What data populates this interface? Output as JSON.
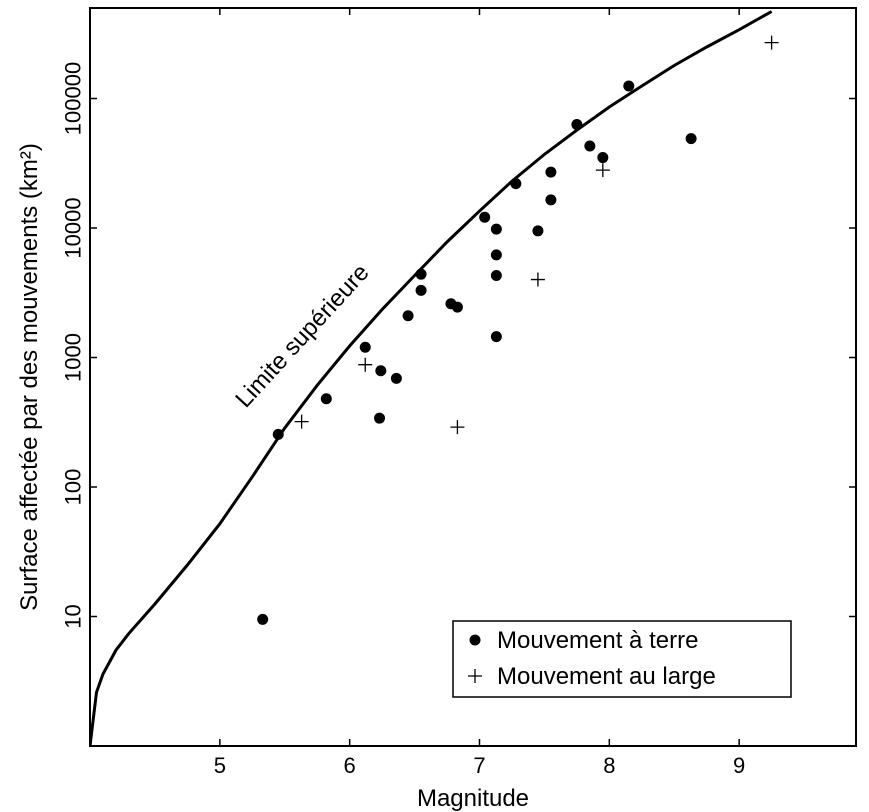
{
  "chart_data": {
    "type": "scatter",
    "title": "",
    "xlabel": "Magnitude",
    "ylabel": "Surface affectée par des mouvements (km²)",
    "xlim": [
      4,
      9.9
    ],
    "ylim": [
      1,
      500000
    ],
    "y_scale": "log",
    "grid": false,
    "x_ticks": [
      5,
      6,
      7,
      8,
      9
    ],
    "y_ticks": [
      10,
      100,
      1000,
      10000,
      100000
    ],
    "legend_position": "bottom-right",
    "legend": {
      "onshore": "Mouvement à terre",
      "offshore": "Mouvement au large"
    },
    "curve_label": "Limite supérieure",
    "series": [
      {
        "name": "Mouvement à terre",
        "marker": "dot",
        "points": [
          {
            "x": 5.33,
            "y": 9.5
          },
          {
            "x": 5.45,
            "y": 255
          },
          {
            "x": 5.82,
            "y": 480
          },
          {
            "x": 6.12,
            "y": 1200
          },
          {
            "x": 6.23,
            "y": 340
          },
          {
            "x": 6.24,
            "y": 790
          },
          {
            "x": 6.36,
            "y": 690
          },
          {
            "x": 6.45,
            "y": 2100
          },
          {
            "x": 6.55,
            "y": 4400
          },
          {
            "x": 6.55,
            "y": 3300
          },
          {
            "x": 6.78,
            "y": 2600
          },
          {
            "x": 6.83,
            "y": 2450
          },
          {
            "x": 7.04,
            "y": 12100
          },
          {
            "x": 7.13,
            "y": 9800
          },
          {
            "x": 7.13,
            "y": 6200
          },
          {
            "x": 7.13,
            "y": 4300
          },
          {
            "x": 7.13,
            "y": 1450
          },
          {
            "x": 7.28,
            "y": 22000
          },
          {
            "x": 7.45,
            "y": 9500
          },
          {
            "x": 7.55,
            "y": 27000
          },
          {
            "x": 7.55,
            "y": 16500
          },
          {
            "x": 7.75,
            "y": 63000
          },
          {
            "x": 7.85,
            "y": 43000
          },
          {
            "x": 7.95,
            "y": 35000
          },
          {
            "x": 8.15,
            "y": 125000
          },
          {
            "x": 8.63,
            "y": 49000
          }
        ]
      },
      {
        "name": "Mouvement au large",
        "marker": "plus",
        "points": [
          {
            "x": 5.63,
            "y": 320
          },
          {
            "x": 6.12,
            "y": 880
          },
          {
            "x": 6.83,
            "y": 290
          },
          {
            "x": 7.45,
            "y": 4000
          },
          {
            "x": 7.95,
            "y": 28000
          },
          {
            "x": 9.25,
            "y": 270000
          }
        ]
      },
      {
        "name": "Limite supérieure",
        "marker": "line",
        "points": [
          {
            "x": 4.0,
            "y": 1
          },
          {
            "x": 4.05,
            "y": 2.6
          },
          {
            "x": 4.1,
            "y": 3.6
          },
          {
            "x": 4.2,
            "y": 5.5
          },
          {
            "x": 4.3,
            "y": 7.4
          },
          {
            "x": 4.5,
            "y": 12.5
          },
          {
            "x": 4.75,
            "y": 25
          },
          {
            "x": 5.0,
            "y": 52
          },
          {
            "x": 5.25,
            "y": 120
          },
          {
            "x": 5.5,
            "y": 285
          },
          {
            "x": 5.75,
            "y": 610
          },
          {
            "x": 6.0,
            "y": 1230
          },
          {
            "x": 6.25,
            "y": 2350
          },
          {
            "x": 6.5,
            "y": 4300
          },
          {
            "x": 6.75,
            "y": 7800
          },
          {
            "x": 7.0,
            "y": 13500
          },
          {
            "x": 7.25,
            "y": 23000
          },
          {
            "x": 7.5,
            "y": 37000
          },
          {
            "x": 7.75,
            "y": 57000
          },
          {
            "x": 8.0,
            "y": 86000
          },
          {
            "x": 8.25,
            "y": 125000
          },
          {
            "x": 8.5,
            "y": 180000
          },
          {
            "x": 8.75,
            "y": 250000
          },
          {
            "x": 9.0,
            "y": 340000
          },
          {
            "x": 9.25,
            "y": 470000
          }
        ]
      }
    ]
  }
}
